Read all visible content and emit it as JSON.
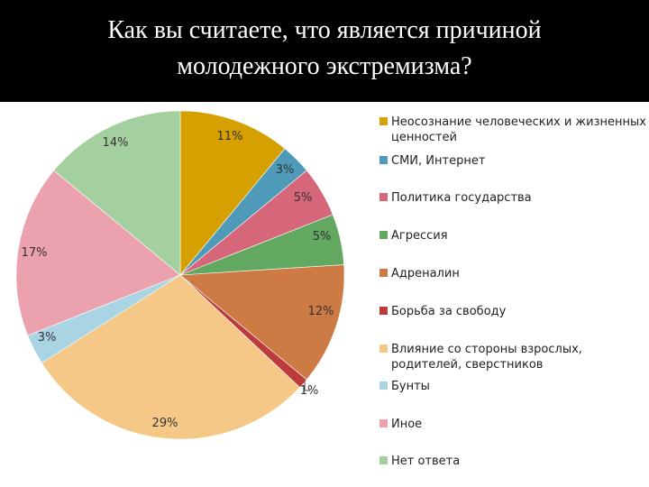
{
  "title": "Как вы считаете, что является причиной\nмолодежного экстремизма?",
  "chart_data": {
    "type": "pie",
    "title": "Как вы считаете, что является причиной молодежного экстремизма?",
    "legend_position": "right",
    "slices": [
      {
        "label": "Неосознание человеческих и жизненных ценностей",
        "legend_lines": [
          "Неосознание человеческих и жизненных",
          "ценностей"
        ],
        "value": 11,
        "value_label": "11%",
        "color": "#D6A000"
      },
      {
        "label": "СМИ, Интернет",
        "legend_lines": [
          "СМИ, Интернет"
        ],
        "value": 3,
        "value_label": "3%",
        "color": "#4E9AB8"
      },
      {
        "label": "Политика государства",
        "legend_lines": [
          "Политика государства"
        ],
        "value": 5,
        "value_label": "5%",
        "color": "#D6677A"
      },
      {
        "label": "Агрессия",
        "legend_lines": [
          "Агрессия"
        ],
        "value": 5,
        "value_label": "5%",
        "color": "#62A860"
      },
      {
        "label": "Адреналин",
        "legend_lines": [
          "Адреналин"
        ],
        "value": 12,
        "value_label": "12%",
        "color": "#CD7A45"
      },
      {
        "label": "Борьба за свободу",
        "legend_lines": [
          "Борьба за свободу"
        ],
        "value": 1,
        "value_label": "1%",
        "color": "#BE3B3B"
      },
      {
        "label": "Влияние со стороны взрослых, родителей, сверстников",
        "legend_lines": [
          "Влияние со стороны взрослых,",
          "родителей, сверстников"
        ],
        "value": 29,
        "value_label": "29%",
        "color": "#F5C888"
      },
      {
        "label": "Бунты",
        "legend_lines": [
          "Бунты"
        ],
        "value": 3,
        "value_label": "3%",
        "color": "#A8D4E4"
      },
      {
        "label": "Иное",
        "legend_lines": [
          "Иное"
        ],
        "value": 17,
        "value_label": "17%",
        "color": "#ECA2AE"
      },
      {
        "label": "Нет ответа",
        "legend_lines": [
          "Нет ответа"
        ],
        "value": 14,
        "value_label": "14%",
        "color": "#A4CF9E"
      }
    ]
  }
}
